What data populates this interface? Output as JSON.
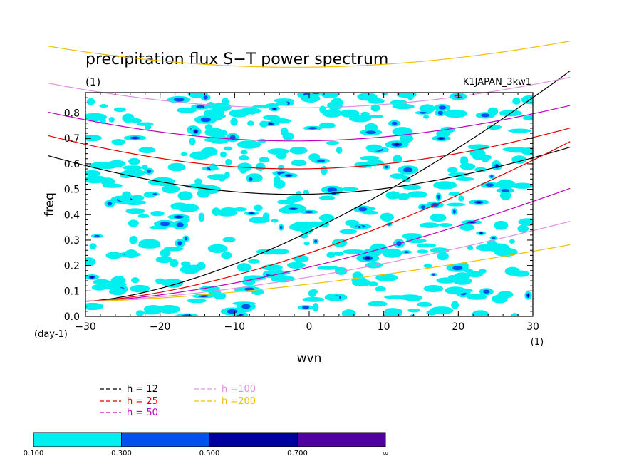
{
  "chart_data": {
    "type": "heatmap",
    "title": "precipitation flux S−T power spectrum",
    "units_label": "(1)",
    "dataset_label": "K1JAPAN_3kw1",
    "xlabel": "wvn",
    "ylabel": "freq",
    "x_unit_label": "(1)",
    "y_unit_label": "(day-1)",
    "xlim": [
      -30,
      30
    ],
    "ylim": [
      0,
      0.88
    ],
    "x_ticks": [
      -30,
      -20,
      -10,
      0,
      10,
      20,
      30
    ],
    "x_tick_labels": [
      "−30",
      "−20",
      "−10",
      "0",
      "10",
      "20",
      "30"
    ],
    "y_ticks": [
      0,
      0.1,
      0.2,
      0.3,
      0.4,
      0.5,
      0.6,
      0.7,
      0.8
    ],
    "y_tick_labels": [
      "0.0",
      "0.1",
      "0.2",
      "0.3",
      "0.4",
      "0.5",
      "0.6",
      "0.7",
      "0.8"
    ],
    "dispersion_curves": [
      {
        "label": "h = 12",
        "color": "#000000",
        "kelvin_kmin": -30,
        "ig_min_freq": 0.48
      },
      {
        "label": "h = 25",
        "color": "#e00000",
        "kelvin_kmin": -30,
        "ig_min_freq": 0.58
      },
      {
        "label": "h = 50",
        "color": "#c000c0",
        "kelvin_kmin": -30,
        "ig_min_freq": 0.69
      },
      {
        "label": "h =100",
        "color": "#e090e0",
        "kelvin_kmin": -30,
        "ig_min_freq": 0.82
      },
      {
        "label": "h =200",
        "color": "#f0c000",
        "kelvin_kmin": -30,
        "ig_min_freq": 0.98
      }
    ],
    "legend_placement": "bottom-left, below plot",
    "colorbar": {
      "levels": [
        "0.100",
        "0.300",
        "0.500",
        "0.700",
        "∞"
      ],
      "colors": [
        "#00f0f0",
        "#0050f0",
        "#0000a0",
        "#5000a0"
      ]
    },
    "blob_colors": [
      "#00f0f0",
      "#0050f0",
      "#0000a0"
    ]
  }
}
